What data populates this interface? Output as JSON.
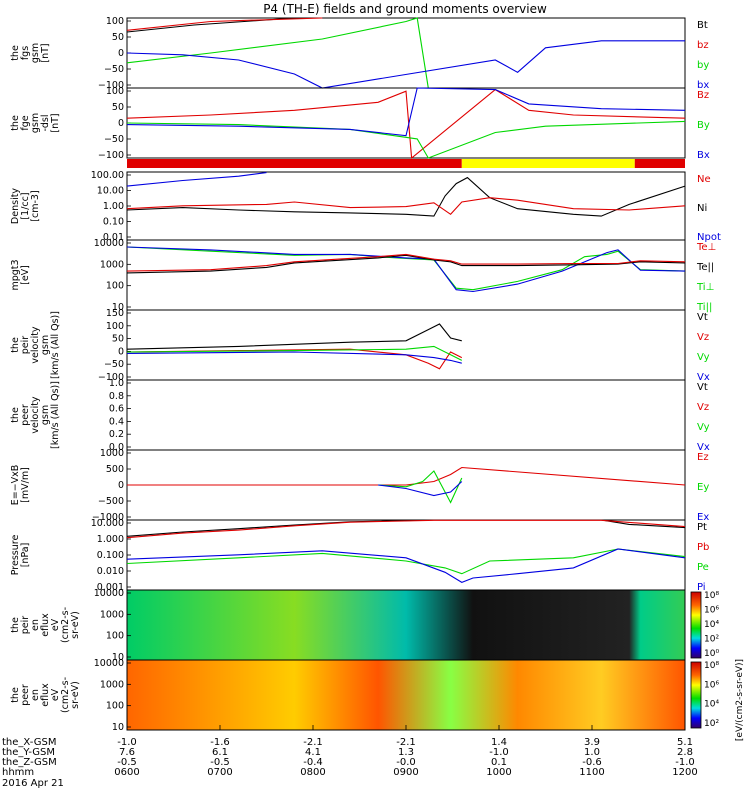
{
  "title": "P4 (TH-E) fields and ground moments overview",
  "date_label": "2016 Apr 21",
  "colors": {
    "black": "#000000",
    "red": "#e00000",
    "green": "#00d800",
    "blue": "#0000e0",
    "yellow": "#ffff00"
  },
  "chart_data": [
    {
      "type": "line",
      "panel": "fgs",
      "ylabel": [
        "the",
        "fgs",
        "gsm",
        "[nT]"
      ],
      "ylim": [
        -100,
        100
      ],
      "yticks": [
        "100",
        "50",
        "0",
        "−50",
        "−100"
      ],
      "legend": [
        {
          "label": "Bt",
          "color": "black"
        },
        {
          "label": "bz",
          "color": "red"
        },
        {
          "label": "by",
          "color": "green"
        },
        {
          "label": "bx",
          "color": "blue"
        }
      ],
      "series": [
        {
          "name": "Bt",
          "color": "black",
          "x": [
            0,
            0.12,
            0.3
          ],
          "y": [
            60,
            80,
            100
          ]
        },
        {
          "name": "bz",
          "color": "red",
          "x": [
            0,
            0.15,
            0.35
          ],
          "y": [
            65,
            90,
            100
          ]
        },
        {
          "name": "by",
          "color": "green",
          "x": [
            0,
            0.15,
            0.35,
            0.5,
            0.52,
            0.54
          ],
          "y": [
            -28,
            0,
            40,
            90,
            100,
            -100
          ]
        },
        {
          "name": "bx",
          "color": "blue",
          "x": [
            0,
            0.1,
            0.2,
            0.3,
            0.35,
            0.66,
            0.7,
            0.75,
            0.85,
            1.0
          ],
          "y": [
            0,
            -5,
            -20,
            -60,
            -100,
            -20,
            -55,
            15,
            35,
            35
          ]
        }
      ]
    },
    {
      "type": "line",
      "panel": "fge",
      "ylabel": [
        "the",
        "fge",
        "gsm",
        "-dsl",
        "[nT]"
      ],
      "ylim": [
        -120,
        100
      ],
      "yticks": [
        "100",
        "50",
        "0",
        "−50",
        "−100"
      ],
      "legend": [
        {
          "label": "Bz",
          "color": "red"
        },
        {
          "label": "By",
          "color": "green"
        },
        {
          "label": "Bx",
          "color": "blue"
        }
      ],
      "series": [
        {
          "name": "Bz",
          "color": "red",
          "x": [
            0,
            0.15,
            0.3,
            0.45,
            0.5,
            0.51,
            0.66,
            0.72,
            0.8,
            1.0
          ],
          "y": [
            5,
            15,
            30,
            55,
            90,
            -120,
            95,
            30,
            15,
            5
          ]
        },
        {
          "name": "By",
          "color": "green",
          "x": [
            0,
            0.2,
            0.4,
            0.52,
            0.54,
            0.66,
            0.75,
            1.0
          ],
          "y": [
            -10,
            -15,
            -30,
            -60,
            -120,
            -40,
            -20,
            -5
          ]
        },
        {
          "name": "Bx",
          "color": "blue",
          "x": [
            0,
            0.2,
            0.4,
            0.5,
            0.52,
            0.66,
            0.72,
            0.85,
            1.0
          ],
          "y": [
            -15,
            -20,
            -30,
            -50,
            100,
            95,
            50,
            35,
            30
          ]
        }
      ]
    },
    {
      "type": "bar",
      "panel": "mode",
      "categories": [
        "red",
        "yellow",
        "red"
      ],
      "segments": [
        [
          0,
          0.6,
          "red"
        ],
        [
          0.6,
          0.91,
          "yellow"
        ],
        [
          0.91,
          1.0,
          "red"
        ]
      ]
    },
    {
      "type": "line",
      "panel": "density",
      "ylabel": [
        "Density",
        "[1/cc]",
        "[cm-3]"
      ],
      "log": true,
      "ylim": [
        0.003,
        200
      ],
      "yticks": [
        "100.00",
        "10.00",
        "1.00",
        "0.10",
        "0.01"
      ],
      "legend": [
        {
          "label": "Ne",
          "color": "red"
        },
        {
          "label": "Ni",
          "color": "black"
        },
        {
          "label": "Npot",
          "color": "blue"
        }
      ],
      "series": [
        {
          "name": "Ni",
          "color": "black",
          "x": [
            0,
            0.1,
            0.2,
            0.3,
            0.4,
            0.5,
            0.55,
            0.57,
            0.59,
            0.61,
            0.65,
            0.7,
            0.8,
            0.85,
            0.9,
            1.0
          ],
          "y": [
            0.4,
            0.6,
            0.4,
            0.3,
            0.25,
            0.2,
            0.15,
            4,
            30,
            80,
            3,
            0.5,
            0.2,
            0.15,
            1,
            20
          ]
        },
        {
          "name": "Ne",
          "color": "red",
          "x": [
            0,
            0.1,
            0.25,
            0.3,
            0.4,
            0.5,
            0.55,
            0.58,
            0.6,
            0.65,
            0.7,
            0.8,
            0.9,
            1.0
          ],
          "y": [
            0.5,
            0.8,
            1.0,
            1.5,
            0.6,
            0.7,
            1.3,
            0.2,
            1.5,
            3,
            2,
            0.5,
            0.4,
            0.8
          ]
        },
        {
          "name": "Npot",
          "color": "blue",
          "x": [
            0,
            0.1,
            0.2,
            0.25
          ],
          "y": [
            20,
            50,
            100,
            180
          ]
        }
      ]
    },
    {
      "type": "line",
      "panel": "temperature",
      "ylabel": [
        "mpgt3",
        "[eV]"
      ],
      "log": true,
      "ylim": [
        2,
        12000
      ],
      "yticks": [
        "10000",
        "1000",
        "100",
        "10"
      ],
      "legend": [
        {
          "label": "Te⊥",
          "color": "red"
        },
        {
          "label": "Te||",
          "color": "black"
        },
        {
          "label": "Ti⊥",
          "color": "green"
        },
        {
          "label": "Ti||",
          "color": "green"
        }
      ],
      "series": [
        {
          "name": "Ti",
          "color": "green",
          "x": [
            0,
            0.15,
            0.3,
            0.4,
            0.45,
            0.5,
            0.55,
            0.59,
            0.62,
            0.7,
            0.78,
            0.82,
            0.86,
            0.88,
            0.92,
            1.0
          ],
          "y": [
            5000,
            3000,
            1800,
            2000,
            1500,
            1200,
            1000,
            30,
            25,
            70,
            300,
            1500,
            2000,
            3000,
            300,
            250
          ]
        },
        {
          "name": "Tix",
          "color": "blue",
          "x": [
            0,
            0.15,
            0.3,
            0.4,
            0.5,
            0.55,
            0.59,
            0.62,
            0.7,
            0.78,
            0.86,
            0.88,
            0.92,
            1.0
          ],
          "y": [
            5000,
            3500,
            2000,
            2000,
            1300,
            1100,
            25,
            20,
            50,
            250,
            2500,
            3500,
            280,
            250
          ]
        },
        {
          "name": "Te",
          "color": "black",
          "x": [
            0,
            0.15,
            0.25,
            0.3,
            0.45,
            0.5,
            0.55,
            0.58,
            0.6,
            0.7,
            0.8,
            0.88,
            0.92,
            1.0
          ],
          "y": [
            200,
            250,
            400,
            700,
            1300,
            1800,
            1000,
            800,
            500,
            500,
            550,
            600,
            800,
            700
          ]
        },
        {
          "name": "Tepar",
          "color": "red",
          "x": [
            0,
            0.15,
            0.25,
            0.3,
            0.45,
            0.5,
            0.55,
            0.58,
            0.6,
            0.7,
            0.8,
            0.88,
            0.92,
            1.0
          ],
          "y": [
            250,
            300,
            500,
            800,
            1500,
            2000,
            1100,
            900,
            600,
            600,
            650,
            650,
            900,
            800
          ]
        }
      ]
    },
    {
      "type": "line",
      "panel": "peir_velocity",
      "ylabel": [
        "the",
        "peir",
        "velocity",
        "gsm",
        "[km/s (All Qs)]"
      ],
      "ylim": [
        -100,
        150
      ],
      "yticks": [
        "150",
        "100",
        "50",
        "0",
        "−50",
        "−100"
      ],
      "legend": [
        {
          "label": "Vt",
          "color": "black"
        },
        {
          "label": "Vz",
          "color": "red"
        },
        {
          "label": "Vy",
          "color": "green"
        },
        {
          "label": "Vx",
          "color": "blue"
        }
      ],
      "series": [
        {
          "name": "Vt",
          "color": "black",
          "x": [
            0,
            0.2,
            0.4,
            0.5,
            0.54,
            0.56,
            0.58,
            0.6
          ],
          "y": [
            10,
            20,
            35,
            40,
            80,
            100,
            50,
            40
          ]
        },
        {
          "name": "Vz",
          "color": "red",
          "x": [
            0,
            0.2,
            0.4,
            0.5,
            0.54,
            0.56,
            0.58,
            0.6
          ],
          "y": [
            0,
            5,
            10,
            -10,
            -40,
            -60,
            0,
            -20
          ]
        },
        {
          "name": "Vy",
          "color": "green",
          "x": [
            0,
            0.3,
            0.5,
            0.55,
            0.58,
            0.6
          ],
          "y": [
            0,
            5,
            10,
            20,
            -10,
            -30
          ]
        },
        {
          "name": "Vx",
          "color": "blue",
          "x": [
            0,
            0.3,
            0.5,
            0.55,
            0.58,
            0.6
          ],
          "y": [
            -5,
            0,
            -10,
            -20,
            -30,
            -40
          ]
        }
      ]
    },
    {
      "type": "line",
      "panel": "peer_velocity",
      "ylabel": [
        "the",
        "peer",
        "velocity",
        "gsm",
        "[km/s (All Qs)]"
      ],
      "ylim": [
        0,
        1
      ],
      "yticks": [
        "1.0",
        "0.8",
        "0.6",
        "0.4",
        "0.2",
        "0.0"
      ],
      "legend": [
        {
          "label": "Vt",
          "color": "black"
        },
        {
          "label": "Vz",
          "color": "red"
        },
        {
          "label": "Vy",
          "color": "green"
        },
        {
          "label": "Vx",
          "color": "blue"
        }
      ],
      "series": []
    },
    {
      "type": "line",
      "panel": "efield",
      "ylabel": [
        "E=−VxB",
        "[mV/m]"
      ],
      "ylim": [
        -1000,
        1000
      ],
      "yticks": [
        "1000",
        "500",
        "0",
        "−500",
        "−1000"
      ],
      "legend": [
        {
          "label": "Ez",
          "color": "red"
        },
        {
          "label": "Ey",
          "color": "green"
        },
        {
          "label": "Ex",
          "color": "blue"
        }
      ],
      "series": [
        {
          "name": "Ez",
          "color": "red",
          "x": [
            0,
            0.5,
            0.55,
            0.58,
            0.6,
            1.0
          ],
          "y": [
            0,
            0,
            100,
            300,
            500,
            0
          ]
        },
        {
          "name": "Ey",
          "color": "green",
          "x": [
            0.45,
            0.5,
            0.53,
            0.55,
            0.58,
            0.6
          ],
          "y": [
            0,
            -50,
            100,
            400,
            -500,
            200
          ]
        },
        {
          "name": "Ex",
          "color": "blue",
          "x": [
            0.45,
            0.5,
            0.55,
            0.58,
            0.6
          ],
          "y": [
            0,
            -100,
            -300,
            -200,
            100
          ]
        }
      ]
    },
    {
      "type": "line",
      "panel": "pressure",
      "ylabel": [
        "Pressure",
        "[nPa]"
      ],
      "log": true,
      "ylim": [
        0.0003,
        20
      ],
      "yticks": [
        "10.000",
        "1.000",
        "0.100",
        "0.010",
        "0.001"
      ],
      "legend": [
        {
          "label": "Pt",
          "color": "black"
        },
        {
          "label": "Pb",
          "color": "red"
        },
        {
          "label": "Pe",
          "color": "green"
        },
        {
          "label": "Pi",
          "color": "blue"
        }
      ],
      "series": [
        {
          "name": "Pt",
          "color": "black",
          "x": [
            0,
            0.1,
            0.2,
            0.3,
            0.4,
            0.55,
            0.85,
            0.9,
            1.0
          ],
          "y": [
            1.5,
            3,
            5,
            9,
            15,
            20,
            20,
            10,
            6
          ]
        },
        {
          "name": "Pb",
          "color": "red",
          "x": [
            0,
            0.1,
            0.2,
            0.3,
            0.4,
            0.55,
            0.85,
            1.0
          ],
          "y": [
            1.2,
            2.5,
            4,
            8,
            14,
            19,
            19,
            7
          ]
        },
        {
          "name": "Pe",
          "color": "green",
          "x": [
            0,
            0.2,
            0.35,
            0.5,
            0.57,
            0.6,
            0.65,
            0.8,
            0.88,
            1.0
          ],
          "y": [
            0.02,
            0.05,
            0.1,
            0.03,
            0.01,
            0.004,
            0.03,
            0.05,
            0.2,
            0.06
          ]
        },
        {
          "name": "Pi",
          "color": "blue",
          "x": [
            0,
            0.2,
            0.35,
            0.5,
            0.57,
            0.6,
            0.62,
            0.7,
            0.8,
            0.88,
            1.0
          ],
          "y": [
            0.04,
            0.08,
            0.15,
            0.05,
            0.005,
            0.001,
            0.002,
            0.004,
            0.01,
            0.2,
            0.05
          ]
        }
      ]
    },
    {
      "type": "heatmap",
      "panel": "peir_en",
      "ylabel": [
        "the",
        "peir",
        "en",
        "eflux",
        "eV",
        "(cm2-s-",
        "sr-eV)"
      ],
      "yticks": [
        "10000",
        "1000",
        "100",
        "10"
      ],
      "colorbar": {
        "ticks": [
          "10⁸",
          "10⁶",
          "10⁴",
          "10²",
          "10⁰"
        ],
        "label": "[eV/(cm2-s-sr-eV)]"
      }
    },
    {
      "type": "heatmap",
      "panel": "peer_en",
      "ylabel": [
        "the",
        "peer",
        "en",
        "eflux",
        "eV",
        "(cm2-s-",
        "sr-eV)"
      ],
      "yticks": [
        "10000",
        "1000",
        "100",
        "10"
      ],
      "colorbar": {
        "ticks": [
          "10⁸",
          "10⁶",
          "10⁴",
          "10²"
        ],
        "label": "[eV/(cm2-s-sr-eV)]"
      }
    }
  ],
  "xaxis": {
    "rows": [
      {
        "label": "the_X-GSM",
        "values": [
          "-1.0",
          "-1.6",
          "-2.1",
          "-2.1",
          "1.4",
          "3.9",
          "5.1"
        ]
      },
      {
        "label": "the_Y-GSM",
        "values": [
          "7.6",
          "6.1",
          "4.1",
          "1.3",
          "-1.0",
          "1.0",
          "2.8"
        ]
      },
      {
        "label": "the_Z-GSM",
        "values": [
          "-0.5",
          "-0.5",
          "-0.4",
          "-0.0",
          "0.1",
          "-0.6",
          "-1.0"
        ]
      },
      {
        "label": "hhmm",
        "values": [
          "0600",
          "0700",
          "0800",
          "0900",
          "1000",
          "1100",
          "1200"
        ]
      }
    ]
  }
}
